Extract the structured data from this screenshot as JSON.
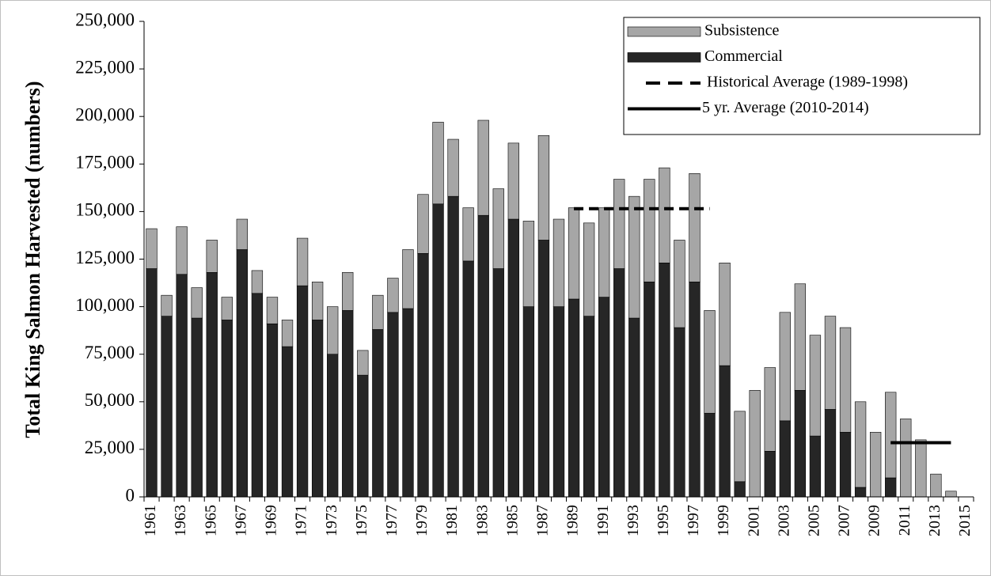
{
  "chart_data": {
    "type": "bar",
    "stacked": true,
    "y_label": "Total King Salmon Harvested (numbers)",
    "categories": [
      "1961",
      null,
      "1963",
      null,
      "1965",
      null,
      "1967",
      null,
      "1969",
      null,
      "1971",
      null,
      "1973",
      null,
      "1975",
      null,
      "1977",
      null,
      "1979",
      null,
      "1981",
      null,
      "1983",
      null,
      "1985",
      null,
      "1987",
      null,
      "1989",
      null,
      "1991",
      null,
      "1993",
      null,
      "1995",
      null,
      "1997",
      null,
      "1999",
      null,
      "2001",
      null,
      "2003",
      null,
      "2005",
      null,
      "2007",
      null,
      "2009",
      null,
      "2011",
      null,
      "2013",
      null,
      "2015"
    ],
    "series": [
      {
        "name": "Subsistence",
        "type": "bar",
        "color": "#a6a6a6",
        "values": [
          21000,
          11000,
          25000,
          16000,
          17000,
          12000,
          16000,
          12000,
          14000,
          14000,
          25000,
          20000,
          25000,
          20000,
          13000,
          18000,
          18000,
          31000,
          31000,
          43000,
          30000,
          28000,
          50000,
          42000,
          40000,
          45000,
          55000,
          46000,
          48000,
          49000,
          47000,
          47000,
          64000,
          54000,
          50000,
          46000,
          57000,
          54000,
          54000,
          37000,
          56000,
          44000,
          57000,
          56000,
          53000,
          49000,
          55000,
          45000,
          34000,
          45000,
          41000,
          30000,
          12000,
          3000,
          null
        ]
      },
      {
        "name": "Commercial",
        "type": "bar",
        "color": "#262626",
        "values": [
          120000,
          95000,
          117000,
          94000,
          118000,
          93000,
          130000,
          107000,
          91000,
          79000,
          111000,
          93000,
          75000,
          98000,
          64000,
          88000,
          97000,
          99000,
          128000,
          154000,
          158000,
          124000,
          148000,
          120000,
          146000,
          100000,
          135000,
          100000,
          104000,
          95000,
          105000,
          120000,
          94000,
          113000,
          123000,
          89000,
          113000,
          44000,
          69000,
          8000,
          0,
          24000,
          40000,
          56000,
          32000,
          46000,
          34000,
          5000,
          0,
          10000,
          0,
          0,
          0,
          0,
          null
        ]
      },
      {
        "name": "Historical Average (1989-1998)",
        "type": "line",
        "dashed": true,
        "color": "#000000",
        "values": [
          null,
          null,
          null,
          null,
          null,
          null,
          null,
          null,
          null,
          null,
          null,
          null,
          null,
          null,
          null,
          null,
          null,
          null,
          null,
          null,
          null,
          null,
          null,
          null,
          null,
          null,
          null,
          null,
          151500,
          151500,
          151500,
          151500,
          151500,
          151500,
          151500,
          151500,
          151500,
          151500,
          null,
          null,
          null,
          null,
          null,
          null,
          null,
          null,
          null,
          null,
          null,
          null,
          null,
          null,
          null,
          null,
          null
        ]
      },
      {
        "name": "5 yr. Average (2010-2014)",
        "type": "line",
        "dashed": false,
        "color": "#000000",
        "values": [
          null,
          null,
          null,
          null,
          null,
          null,
          null,
          null,
          null,
          null,
          null,
          null,
          null,
          null,
          null,
          null,
          null,
          null,
          null,
          null,
          null,
          null,
          null,
          null,
          null,
          null,
          null,
          null,
          null,
          null,
          null,
          null,
          null,
          null,
          null,
          null,
          null,
          null,
          null,
          null,
          null,
          null,
          null,
          null,
          null,
          null,
          null,
          null,
          null,
          28500,
          28500,
          28500,
          28500,
          28500,
          null
        ]
      }
    ],
    "ylim": [
      0,
      250000
    ],
    "yticks": [
      0,
      {
        "value": 25000,
        "label": "25,000"
      },
      {
        "value": 50000,
        "label": "50,000"
      },
      {
        "value": 75000,
        "label": "75,000"
      },
      {
        "value": 100000,
        "label": "100,000"
      },
      {
        "value": 125000,
        "label": "125,000"
      },
      {
        "value": 150000,
        "label": "150,000"
      },
      {
        "value": 175000,
        "label": "175,000"
      },
      {
        "value": 200000,
        "label": "200,000"
      },
      {
        "value": 225000,
        "label": "225,000"
      },
      {
        "value": 250000,
        "label": "250,000"
      }
    ],
    "grid": false,
    "legend": "top-right"
  }
}
